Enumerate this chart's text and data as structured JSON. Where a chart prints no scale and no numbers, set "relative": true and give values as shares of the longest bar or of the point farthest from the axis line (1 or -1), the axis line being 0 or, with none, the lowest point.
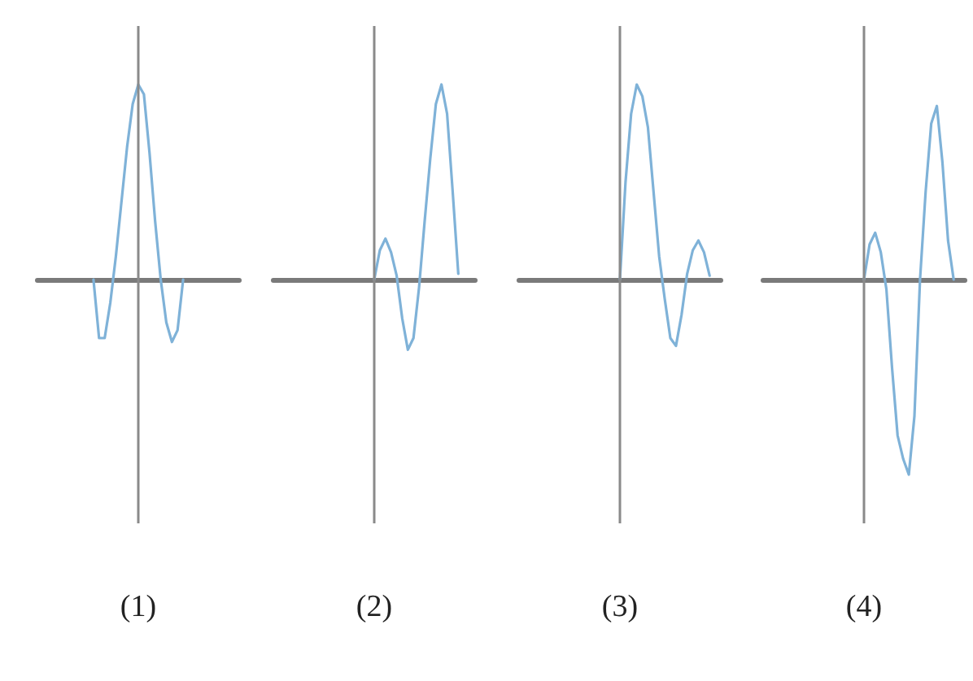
{
  "chart_data": [
    {
      "type": "line",
      "relative": true,
      "xlabel": "(1)",
      "categories": [
        null,
        null,
        null,
        null,
        null,
        null,
        null,
        null,
        null,
        null,
        null,
        null,
        null,
        null,
        null,
        null,
        null,
        null,
        null,
        null,
        null,
        null,
        null,
        null,
        null,
        null,
        null,
        null,
        null,
        null,
        null,
        null,
        null,
        null,
        null,
        null,
        null
      ],
      "series": [
        {
          "color": "#7fb2d8",
          "values": [
            null,
            null,
            null,
            null,
            null,
            null,
            null,
            null,
            null,
            null,
            0,
            -0.3,
            -0.3,
            -0.12,
            0.12,
            0.4,
            0.68,
            0.9,
            1,
            0.95,
            0.65,
            0.3,
            0,
            -0.22,
            -0.32,
            -0.26,
            0,
            null,
            null,
            null,
            null,
            null,
            null,
            null,
            null,
            null,
            null
          ]
        }
      ]
    },
    {
      "type": "line",
      "relative": true,
      "xlabel": "(2)",
      "categories": [
        null,
        null,
        null,
        null,
        null,
        null,
        null,
        null,
        null,
        null,
        null,
        null,
        null,
        null,
        null,
        null,
        null,
        null,
        null,
        null,
        null,
        null,
        null,
        null,
        null,
        null,
        null,
        null,
        null,
        null,
        null,
        null,
        null,
        null,
        null,
        null,
        null
      ],
      "series": [
        {
          "color": "#7fb2d8",
          "values": [
            null,
            null,
            null,
            null,
            null,
            null,
            null,
            null,
            null,
            null,
            null,
            null,
            null,
            null,
            null,
            null,
            null,
            null,
            0,
            0.15,
            0.21,
            0.14,
            0.02,
            -0.2,
            -0.36,
            -0.3,
            -0.04,
            0.3,
            0.62,
            0.9,
            1,
            0.85,
            0.45,
            0.03,
            null,
            null,
            null
          ]
        }
      ]
    },
    {
      "type": "line",
      "relative": true,
      "xlabel": "(3)",
      "categories": [
        null,
        null,
        null,
        null,
        null,
        null,
        null,
        null,
        null,
        null,
        null,
        null,
        null,
        null,
        null,
        null,
        null,
        null,
        null,
        null,
        null,
        null,
        null,
        null,
        null,
        null,
        null,
        null,
        null,
        null,
        null,
        null,
        null,
        null,
        null,
        null,
        null
      ],
      "series": [
        {
          "color": "#7fb2d8",
          "values": [
            null,
            null,
            null,
            null,
            null,
            null,
            null,
            null,
            null,
            null,
            null,
            null,
            null,
            null,
            null,
            null,
            null,
            null,
            0,
            0.5,
            0.85,
            1,
            0.94,
            0.78,
            0.45,
            0.12,
            -0.1,
            -0.3,
            -0.34,
            -0.18,
            0.03,
            0.15,
            0.2,
            0.14,
            0.02,
            null,
            null
          ]
        }
      ]
    },
    {
      "type": "line",
      "relative": true,
      "xlabel": "(4)",
      "categories": [
        null,
        null,
        null,
        null,
        null,
        null,
        null,
        null,
        null,
        null,
        null,
        null,
        null,
        null,
        null,
        null,
        null,
        null,
        null,
        null,
        null,
        null,
        null,
        null,
        null,
        null,
        null,
        null,
        null,
        null,
        null,
        null,
        null,
        null,
        null,
        null,
        null
      ],
      "series": [
        {
          "color": "#7fb2d8",
          "values": [
            null,
            null,
            null,
            null,
            null,
            null,
            null,
            null,
            null,
            null,
            null,
            null,
            null,
            null,
            null,
            null,
            null,
            null,
            0,
            0.18,
            0.24,
            0.14,
            -0.05,
            -0.45,
            -0.8,
            -0.92,
            -1,
            -0.7,
            0,
            0.45,
            0.8,
            0.89,
            0.6,
            0.2,
            0,
            null,
            null
          ]
        }
      ]
    }
  ]
}
